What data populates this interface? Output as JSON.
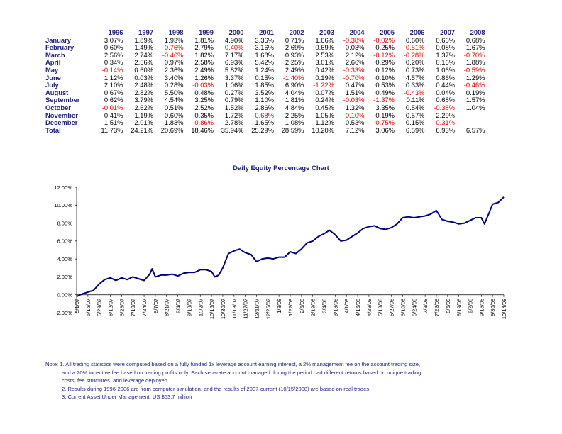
{
  "table": {
    "years": [
      "1996",
      "1997",
      "1998",
      "1999",
      "2000",
      "2001",
      "2002",
      "2003",
      "2004",
      "2005",
      "2006",
      "2007",
      "2008"
    ],
    "rows": [
      {
        "month": "January",
        "values": [
          "3.07%",
          "1.89%",
          "1.93%",
          "1.81%",
          "4.90%",
          "3.36%",
          "0.71%",
          "1.66%",
          "-0.38%",
          "-0.02%",
          "0.60%",
          "0.66%",
          "0.68%"
        ]
      },
      {
        "month": "February",
        "values": [
          "0.60%",
          "1.49%",
          "-0.76%",
          "2.79%",
          "-0.40%",
          "3.16%",
          "2.69%",
          "0.69%",
          "0.03%",
          "0.25%",
          "-0.51%",
          "0.08%",
          "1.67%"
        ]
      },
      {
        "month": "March",
        "values": [
          "2.56%",
          "2.74%",
          "-0.46%",
          "1.82%",
          "7.17%",
          "1.68%",
          "0.93%",
          "2.53%",
          "2.12%",
          "-0.12%",
          "-0.28%",
          "1.37%",
          "-0.70%"
        ]
      },
      {
        "month": "April",
        "values": [
          "0.34%",
          "2.56%",
          "0.97%",
          "2.58%",
          "6.93%",
          "5.42%",
          "2.25%",
          "3.01%",
          "2.66%",
          "0.29%",
          "0.20%",
          "0.16%",
          "1.88%"
        ]
      },
      {
        "month": "May",
        "values": [
          "-0.14%",
          "0.60%",
          "2.36%",
          "2.49%",
          "5.82%",
          "1.24%",
          "2.49%",
          "0.42%",
          "-0.33%",
          "0.12%",
          "0.73%",
          "1.06%",
          "-0.59%"
        ]
      },
      {
        "month": "June",
        "values": [
          "1.12%",
          "0.03%",
          "3.40%",
          "1.26%",
          "3.37%",
          "0.15%",
          "-1.40%",
          "0.19%",
          "-0.70%",
          "0.10%",
          "4.57%",
          "0.86%",
          "1.29%"
        ]
      },
      {
        "month": "July",
        "values": [
          "2.10%",
          "2.48%",
          "0.28%",
          "-0.03%",
          "1.06%",
          "1.85%",
          "6.90%",
          "-1.22%",
          "0.47%",
          "0.53%",
          "0.33%",
          "0.44%",
          "-0.46%"
        ]
      },
      {
        "month": "August",
        "values": [
          "0.67%",
          "2.82%",
          "5.50%",
          "0.48%",
          "0.27%",
          "3.52%",
          "4.04%",
          "0.07%",
          "1.51%",
          "0.49%",
          "-0.43%",
          "0.04%",
          "0.19%"
        ]
      },
      {
        "month": "September",
        "values": [
          "0.62%",
          "3.79%",
          "4.54%",
          "3.25%",
          "0.79%",
          "1.10%",
          "1.81%",
          "0.24%",
          "-0.03%",
          "-1.37%",
          "0.11%",
          "0.68%",
          "1.57%"
        ]
      },
      {
        "month": "October",
        "values": [
          "-0.01%",
          "2.62%",
          "0.51%",
          "2.52%",
          "1.52%",
          "2.86%",
          "4.84%",
          "0.45%",
          "1.32%",
          "3.35%",
          "0.54%",
          "-0.38%",
          "1.04%"
        ]
      },
      {
        "month": "November",
        "values": [
          "0.41%",
          "1.19%",
          "0.60%",
          "0.35%",
          "1.72%",
          "-0.68%",
          "2.25%",
          "1.05%",
          "-0.10%",
          "0.19%",
          "0.57%",
          "2.29%",
          ""
        ]
      },
      {
        "month": "December",
        "values": [
          "1.51%",
          "2.01%",
          "1.83%",
          "-0.86%",
          "2.78%",
          "1.65%",
          "1.08%",
          "1.12%",
          "0.53%",
          "-0.75%",
          "0.15%",
          "-0.31%",
          ""
        ]
      },
      {
        "month": "Total",
        "values": [
          "11.73%",
          "24.21%",
          "20.69%",
          "18.46%",
          "35.94%",
          "25.29%",
          "28.59%",
          "10.20%",
          "7.12%",
          "3.06%",
          "6.59%",
          "6.93%",
          "6.57%"
        ]
      }
    ]
  },
  "colors": {
    "navy": "#1f1f7a",
    "negative": "#e00000",
    "line": "#00007a"
  },
  "chart_data": {
    "type": "line",
    "title": "Daily Equity Percentage Chart",
    "xlabel": "",
    "ylabel": "",
    "ylim": [
      -2,
      12
    ],
    "y_ticks": [
      "-2.00%",
      "0.00%",
      "2.00%",
      "4.00%",
      "6.00%",
      "8.00%",
      "10.00%",
      "12.00%"
    ],
    "grid": false,
    "x_tick_labels": [
      "5/1/07",
      "5/15/07",
      "5/29/07",
      "6/12/07",
      "6/26/07",
      "7/10/07",
      "7/24/07",
      "8/7/07",
      "8/21/07",
      "9/4/07",
      "9/18/07",
      "10/2/07",
      "10/16/07",
      "10/30/07",
      "11/13/07",
      "11/27/07",
      "12/11/07",
      "12/25/07",
      "1/8/08",
      "1/22/08",
      "2/5/08",
      "2/19/08",
      "3/4/08",
      "3/18/08",
      "4/1/08",
      "4/15/08",
      "4/29/08",
      "5/13/08",
      "5/27/08",
      "6/10/08",
      "6/24/08",
      "7/8/08",
      "7/22/08",
      "8/5/08",
      "8/19/08",
      "9/2/08",
      "9/16/08",
      "9/30/08",
      "10/14/08"
    ],
    "series": [
      {
        "points": [
          [
            "5/1/07",
            -0.2
          ],
          [
            "5/8/07",
            0.1
          ],
          [
            "5/15/07",
            0.3
          ],
          [
            "5/22/07",
            0.5
          ],
          [
            "5/29/07",
            1.2
          ],
          [
            "6/5/07",
            1.7
          ],
          [
            "6/12/07",
            1.9
          ],
          [
            "6/19/07",
            1.6
          ],
          [
            "6/26/07",
            1.9
          ],
          [
            "7/3/07",
            1.7
          ],
          [
            "7/10/07",
            2.0
          ],
          [
            "7/17/07",
            1.8
          ],
          [
            "7/24/07",
            1.6
          ],
          [
            "7/31/07",
            2.3
          ],
          [
            "8/3/07",
            2.9
          ],
          [
            "8/7/07",
            2.0
          ],
          [
            "8/14/07",
            2.2
          ],
          [
            "8/21/07",
            2.2
          ],
          [
            "8/28/07",
            2.3
          ],
          [
            "9/4/07",
            2.1
          ],
          [
            "9/11/07",
            2.4
          ],
          [
            "9/18/07",
            2.5
          ],
          [
            "9/25/07",
            2.5
          ],
          [
            "10/2/07",
            2.8
          ],
          [
            "10/9/07",
            2.8
          ],
          [
            "10/16/07",
            2.6
          ],
          [
            "10/20/07",
            2.0
          ],
          [
            "10/25/07",
            2.2
          ],
          [
            "10/30/07",
            3.0
          ],
          [
            "11/6/07",
            4.6
          ],
          [
            "11/13/07",
            4.9
          ],
          [
            "11/20/07",
            5.1
          ],
          [
            "11/27/07",
            4.7
          ],
          [
            "12/4/07",
            4.5
          ],
          [
            "12/11/07",
            3.7
          ],
          [
            "12/18/07",
            4.0
          ],
          [
            "12/25/07",
            4.1
          ],
          [
            "1/1/08",
            4.0
          ],
          [
            "1/8/08",
            4.2
          ],
          [
            "1/15/08",
            4.2
          ],
          [
            "1/22/08",
            4.8
          ],
          [
            "1/29/08",
            4.6
          ],
          [
            "2/5/08",
            5.1
          ],
          [
            "2/12/08",
            5.8
          ],
          [
            "2/19/08",
            6.0
          ],
          [
            "2/26/08",
            6.5
          ],
          [
            "3/4/08",
            6.8
          ],
          [
            "3/11/08",
            7.2
          ],
          [
            "3/18/08",
            6.7
          ],
          [
            "3/25/08",
            6.0
          ],
          [
            "4/1/08",
            6.1
          ],
          [
            "4/8/08",
            6.5
          ],
          [
            "4/15/08",
            6.9
          ],
          [
            "4/22/08",
            7.4
          ],
          [
            "4/29/08",
            7.6
          ],
          [
            "5/6/08",
            7.7
          ],
          [
            "5/13/08",
            7.4
          ],
          [
            "5/20/08",
            7.3
          ],
          [
            "5/27/08",
            7.5
          ],
          [
            "6/3/08",
            7.9
          ],
          [
            "6/10/08",
            8.6
          ],
          [
            "6/17/08",
            8.7
          ],
          [
            "6/24/08",
            8.6
          ],
          [
            "7/1/08",
            8.7
          ],
          [
            "7/8/08",
            8.8
          ],
          [
            "7/15/08",
            9.0
          ],
          [
            "7/22/08",
            9.4
          ],
          [
            "7/29/08",
            8.4
          ],
          [
            "8/5/08",
            8.2
          ],
          [
            "8/12/08",
            8.1
          ],
          [
            "8/19/08",
            7.9
          ],
          [
            "8/26/08",
            8.0
          ],
          [
            "9/2/08",
            8.3
          ],
          [
            "9/9/08",
            8.6
          ],
          [
            "9/16/08",
            8.6
          ],
          [
            "9/20/08",
            7.9
          ],
          [
            "9/26/08",
            9.2
          ],
          [
            "9/30/08",
            10.1
          ],
          [
            "10/7/08",
            10.3
          ],
          [
            "10/14/08",
            10.9
          ]
        ]
      }
    ]
  },
  "notes": {
    "line1": "Note: 1. All trading statistics were computed based on a fully funded 1x leverage account earning interest, a 2% management fee on the account trading size,",
    "line2": "and a 20% incentive fee based on trading profits only. Each separate account managed during the period had different returns based on unique trading",
    "line3": "costs, fee structures, and leverage deployed.",
    "line4": "2. Results during 1996-2006 are from computer simulation, and the results of 2007-current (10/15/2008) are based on real trades.",
    "line5": "3. Current Asset Under Management: US $53.7 million"
  }
}
